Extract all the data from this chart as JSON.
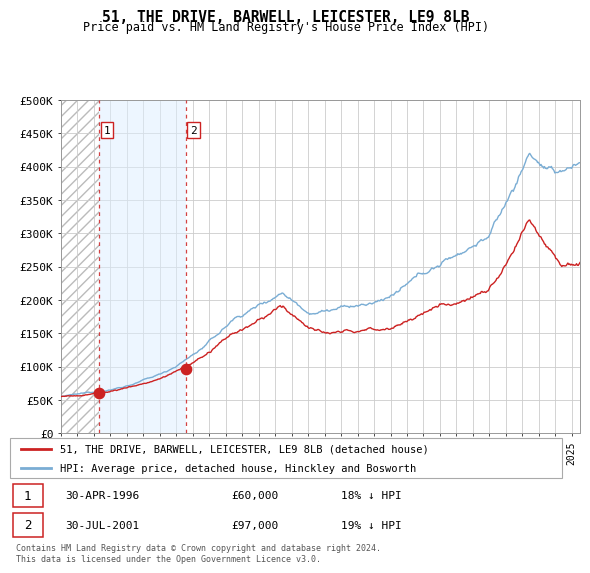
{
  "title": "51, THE DRIVE, BARWELL, LEICESTER, LE9 8LB",
  "subtitle": "Price paid vs. HM Land Registry's House Price Index (HPI)",
  "ylim": [
    0,
    500000
  ],
  "xlim_start": 1994.0,
  "xlim_end": 2025.5,
  "legend_line1": "51, THE DRIVE, BARWELL, LEICESTER, LE9 8LB (detached house)",
  "legend_line2": "HPI: Average price, detached house, Hinckley and Bosworth",
  "sale1_date": "30-APR-1996",
  "sale1_price": "£60,000",
  "sale1_hpi": "18% ↓ HPI",
  "sale1_x": 1996.33,
  "sale1_y": 60000,
  "sale2_date": "30-JUL-2001",
  "sale2_price": "£97,000",
  "sale2_hpi": "19% ↓ HPI",
  "sale2_x": 2001.58,
  "sale2_y": 97000,
  "hpi_color": "#7aadd4",
  "price_color": "#cc2222",
  "footnote": "Contains HM Land Registry data © Crown copyright and database right 2024.\nThis data is licensed under the Open Government Licence v3.0.",
  "grid_color": "#cccccc"
}
